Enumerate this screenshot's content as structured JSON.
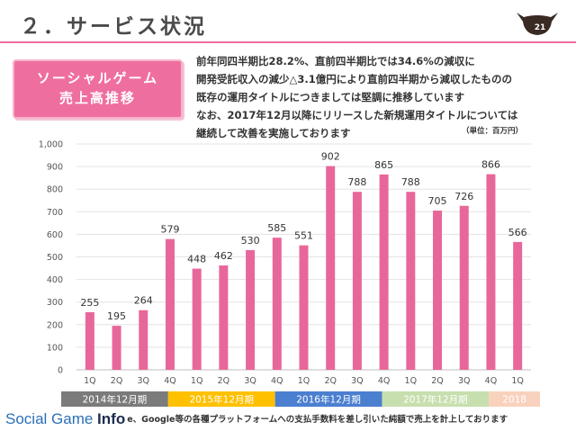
{
  "header": {
    "title": "２．サービス状況",
    "page_number": "21",
    "accent_color": "#ef6ea0"
  },
  "label_box": {
    "line1": "ソーシャルゲーム",
    "line2": "売上高推移"
  },
  "description": [
    "前年同四半期比28.2%、直前四半期比では34.6%の減収に",
    "開発受託収入の減少△3.1億円により直前四半期から減収したものの",
    "既存の運用タイトルにつきましては堅調に推移しています",
    "なお、2017年12月以降にリリースした新規運用タイトルについては",
    "継続して改善を実施しております"
  ],
  "unit_note": "（単位：百万円）",
  "footer": {
    "watermark_prefix": "Social Game ",
    "watermark_suffix": "Info",
    "text": "e、Google等の各種プラットフォームへの支払手数料を差し引いた純額で売上を計上しております"
  },
  "chart_data": {
    "type": "bar",
    "categories": [
      "1Q",
      "2Q",
      "3Q",
      "4Q",
      "1Q",
      "2Q",
      "3Q",
      "4Q",
      "1Q",
      "2Q",
      "3Q",
      "4Q",
      "1Q",
      "2Q",
      "3Q",
      "4Q",
      "1Q"
    ],
    "values": [
      255,
      195,
      264,
      579,
      448,
      462,
      530,
      585,
      551,
      902,
      788,
      865,
      788,
      705,
      726,
      866,
      566
    ],
    "data_labels": [
      "255",
      "195",
      "264",
      "579",
      "448",
      "462",
      "530",
      "585",
      "551",
      "902",
      "788",
      "865",
      "788",
      "705",
      "726",
      "866",
      "566"
    ],
    "ylim": [
      0,
      1000
    ],
    "yticks": [
      "0",
      "100",
      "200",
      "300",
      "400",
      "500",
      "600",
      "700",
      "800",
      "900",
      "1,000"
    ],
    "bar_color": "#e8679b",
    "grid": true,
    "periods": [
      {
        "label": "2014年12月期",
        "color": "#7b7b7b",
        "text_color": "#ffffff"
      },
      {
        "label": "2015年12月期",
        "color": "#ffc000",
        "text_color": "#ffffff"
      },
      {
        "label": "2016年12月期",
        "color": "#4b7fd0",
        "text_color": "#ffffff"
      },
      {
        "label": "2017年12月期",
        "color": "#c7dfae",
        "text_color": "#ffffff"
      },
      {
        "label": "2018",
        "color": "#f9d2be",
        "text_color": "#ffffff"
      }
    ]
  }
}
